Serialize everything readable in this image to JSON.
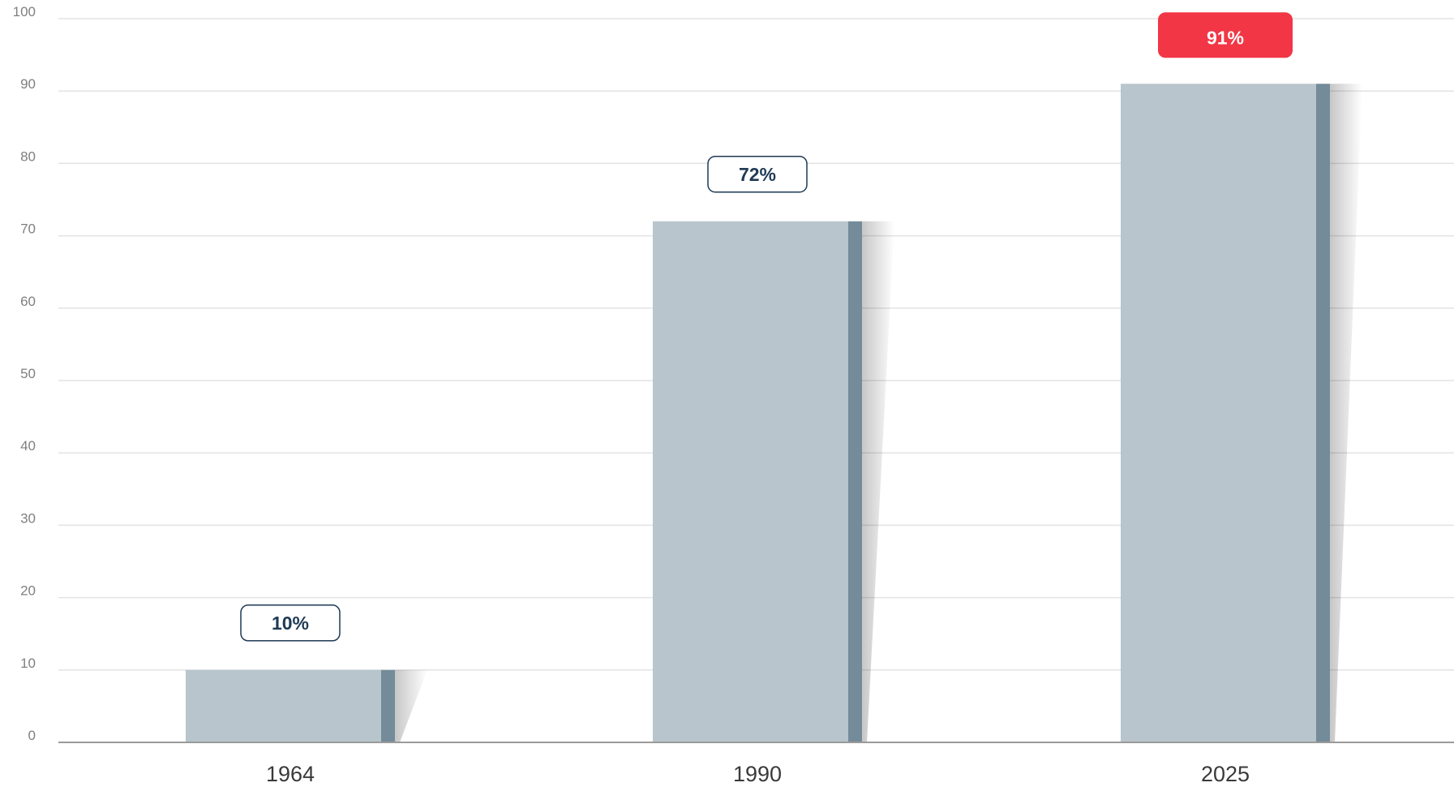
{
  "chart_data": {
    "type": "bar",
    "categories": [
      "1964",
      "1990",
      "2025"
    ],
    "values": [
      10,
      72,
      91
    ],
    "data_labels": [
      "10%",
      "72%",
      "91%"
    ],
    "highlight_index": 2,
    "ylim": [
      0,
      100
    ],
    "yticks": [
      0,
      10,
      20,
      30,
      40,
      50,
      60,
      70,
      80,
      90,
      100
    ],
    "grid": true,
    "title": "",
    "xlabel": "",
    "ylabel": ""
  },
  "colors": {
    "bar_face": "#b8c5cc",
    "bar_edge": "#748b99",
    "label_border": "#1f3a55",
    "label_text": "#1f3a55",
    "highlight_fill": "#f23645",
    "highlight_text": "#ffffff"
  }
}
